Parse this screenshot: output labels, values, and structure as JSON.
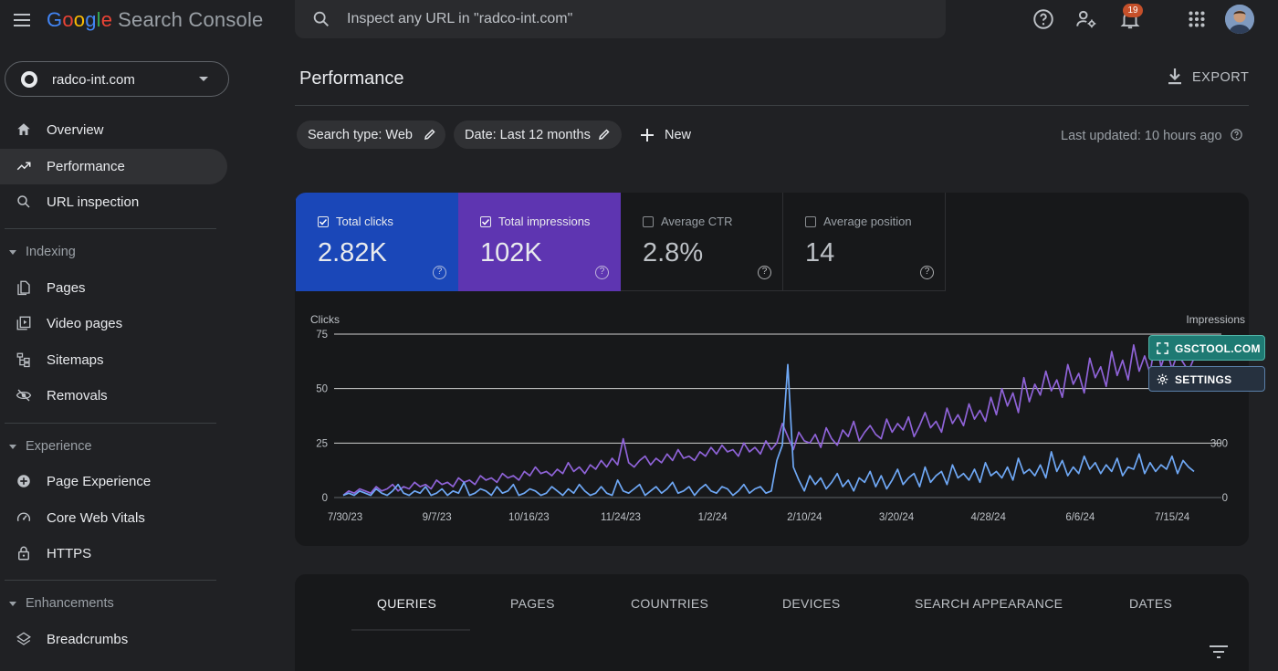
{
  "app": {
    "logo_google": [
      "G",
      "o",
      "o",
      "g",
      "l",
      "e"
    ],
    "product": "Search Console",
    "search_placeholder": "Inspect any URL in \"radco-int.com\"",
    "notifications_count": "19"
  },
  "sidebar": {
    "property": "radco-int.com",
    "items_top": [
      {
        "label": "Overview",
        "icon": "home-icon"
      },
      {
        "label": "Performance",
        "icon": "trending-up-icon",
        "active": true
      },
      {
        "label": "URL inspection",
        "icon": "search-icon"
      }
    ],
    "sections": [
      {
        "title": "Indexing",
        "items": [
          {
            "label": "Pages",
            "icon": "pages-icon"
          },
          {
            "label": "Video pages",
            "icon": "video-pages-icon"
          },
          {
            "label": "Sitemaps",
            "icon": "sitemap-icon"
          },
          {
            "label": "Removals",
            "icon": "eye-off-icon"
          }
        ]
      },
      {
        "title": "Experience",
        "items": [
          {
            "label": "Page Experience",
            "icon": "plus-circle-icon"
          },
          {
            "label": "Core Web Vitals",
            "icon": "gauge-icon"
          },
          {
            "label": "HTTPS",
            "icon": "lock-icon"
          }
        ]
      },
      {
        "title": "Enhancements",
        "items": [
          {
            "label": "Breadcrumbs",
            "icon": "layers-icon"
          }
        ]
      }
    ]
  },
  "main": {
    "title": "Performance",
    "export_label": "EXPORT",
    "filters": [
      "Search type: Web",
      "Date: Last 12 months"
    ],
    "new_label": "New",
    "last_updated": "Last updated: 10 hours ago"
  },
  "metrics": [
    {
      "label": "Total clicks",
      "value": "2.82K",
      "checked": true,
      "color": "#1a47b8"
    },
    {
      "label": "Total impressions",
      "value": "102K",
      "checked": true,
      "color": "#5e35b1"
    },
    {
      "label": "Average CTR",
      "value": "2.8%",
      "checked": false
    },
    {
      "label": "Average position",
      "value": "14",
      "checked": false
    }
  ],
  "overlay_buttons": {
    "gsctool": "GSCTOOL.COM",
    "settings": "SETTINGS"
  },
  "chart_data": {
    "type": "line",
    "left_axis_label": "Clicks",
    "right_axis_label": "Impressions",
    "left_ticks": [
      "0",
      "25",
      "50",
      "75"
    ],
    "right_ticks": [
      "0",
      "300"
    ],
    "ylim_left": [
      0,
      75
    ],
    "x_tick_labels": [
      "7/30/23",
      "9/7/23",
      "10/16/23",
      "11/24/23",
      "1/2/24",
      "2/10/24",
      "3/20/24",
      "4/28/24",
      "6/6/24",
      "7/15/24"
    ],
    "series": [
      {
        "name": "Clicks",
        "color": "#6fa8f5",
        "values": [
          1,
          2,
          1,
          3,
          2,
          1,
          4,
          2,
          1,
          3,
          6,
          2,
          1,
          3,
          2,
          5,
          1,
          2,
          4,
          1,
          3,
          2,
          7,
          1,
          2,
          4,
          3,
          1,
          5,
          2,
          3,
          6,
          1,
          2,
          4,
          3,
          1,
          2,
          5,
          3,
          1,
          4,
          2,
          6,
          3,
          1,
          2,
          5,
          2,
          1,
          8,
          3,
          2,
          4,
          6,
          1,
          3,
          5,
          2,
          4,
          7,
          2,
          3,
          5,
          1,
          4,
          6,
          3,
          2,
          5,
          4,
          1,
          3,
          6,
          2,
          4,
          5,
          2,
          3,
          17,
          24,
          61,
          14,
          8,
          3,
          10,
          6,
          9,
          4,
          7,
          11,
          5,
          8,
          3,
          9,
          7,
          12,
          5,
          10,
          4,
          8,
          13,
          6,
          9,
          11,
          5,
          14,
          7,
          10,
          12,
          6,
          15,
          9,
          11,
          8,
          13,
          7,
          16,
          10,
          12,
          9,
          14,
          8,
          18,
          11,
          13,
          10,
          15,
          9,
          21,
          12,
          17,
          10,
          14,
          11,
          19,
          13,
          16,
          11,
          15,
          12,
          18,
          10,
          14,
          13,
          20,
          11,
          16,
          12,
          15,
          13,
          19,
          11,
          17,
          14,
          12
        ]
      },
      {
        "name": "Impressions",
        "color": "#8f63d8",
        "values": [
          1,
          3,
          2,
          4,
          3,
          2,
          5,
          3,
          4,
          6,
          3,
          5,
          4,
          7,
          5,
          6,
          4,
          8,
          6,
          7,
          5,
          9,
          7,
          8,
          6,
          10,
          8,
          9,
          7,
          11,
          9,
          10,
          8,
          12,
          10,
          14,
          11,
          12,
          10,
          13,
          11,
          16,
          12,
          14,
          11,
          15,
          13,
          17,
          14,
          18,
          15,
          27,
          16,
          14,
          17,
          19,
          15,
          18,
          16,
          20,
          17,
          22,
          18,
          19,
          17,
          21,
          19,
          23,
          20,
          24,
          21,
          22,
          19,
          25,
          21,
          23,
          20,
          26,
          22,
          25,
          34,
          28,
          22,
          30,
          26,
          25,
          29,
          23,
          32,
          27,
          24,
          31,
          28,
          35,
          26,
          30,
          33,
          29,
          27,
          36,
          30,
          34,
          31,
          37,
          28,
          33,
          39,
          32,
          35,
          30,
          41,
          34,
          38,
          33,
          43,
          36,
          40,
          35,
          46,
          38,
          50,
          42,
          48,
          39,
          55,
          44,
          52,
          47,
          58,
          49,
          54,
          46,
          61,
          52,
          57,
          48,
          64,
          55,
          60,
          51,
          67,
          56,
          63,
          54,
          70,
          58,
          65,
          57,
          73,
          60,
          68,
          59,
          66,
          62,
          58,
          64
        ]
      }
    ]
  },
  "tabs": [
    "QUERIES",
    "PAGES",
    "COUNTRIES",
    "DEVICES",
    "SEARCH APPEARANCE",
    "DATES"
  ]
}
